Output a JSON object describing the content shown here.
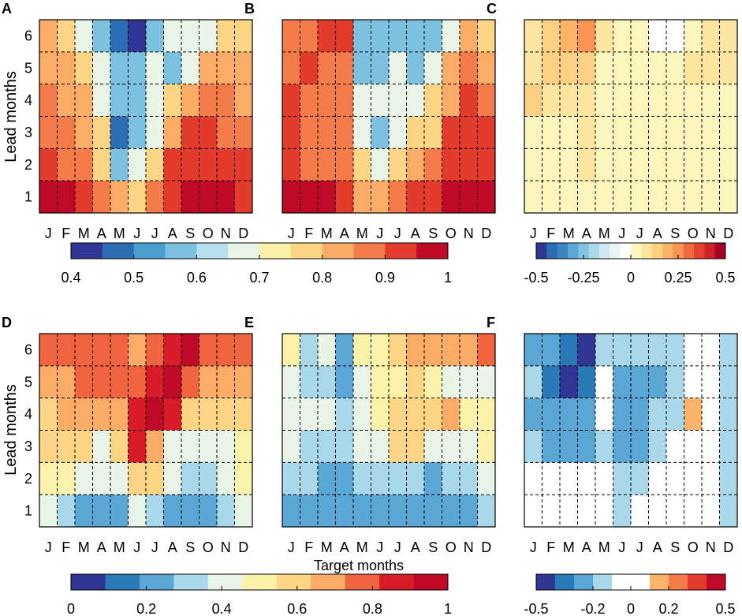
{
  "chart_data": {
    "type": "heatmap",
    "months": [
      "J",
      "F",
      "M",
      "A",
      "M",
      "J",
      "J",
      "A",
      "S",
      "O",
      "N",
      "D"
    ],
    "lead_months": [
      "1",
      "2",
      "3",
      "4",
      "5",
      "6"
    ],
    "ylabel": "Lead months",
    "xlabel": "Target months",
    "panels": [
      {
        "id": "A",
        "letter": "A",
        "row": 0,
        "col": 0,
        "scale": "top_abs",
        "values_lead6_to_1": [
          [
            0.8,
            0.75,
            0.7,
            0.6,
            0.5,
            0.45,
            0.6,
            0.65,
            0.65,
            0.7,
            0.75,
            0.75
          ],
          [
            0.8,
            0.8,
            0.75,
            0.7,
            0.55,
            0.55,
            0.7,
            0.6,
            0.7,
            0.8,
            0.8,
            0.8
          ],
          [
            0.85,
            0.8,
            0.8,
            0.7,
            0.6,
            0.6,
            0.7,
            0.75,
            0.8,
            0.85,
            0.85,
            0.8
          ],
          [
            0.85,
            0.85,
            0.8,
            0.75,
            0.5,
            0.6,
            0.7,
            0.8,
            0.9,
            0.9,
            0.85,
            0.85
          ],
          [
            0.9,
            0.85,
            0.85,
            0.75,
            0.6,
            0.7,
            0.75,
            0.9,
            0.9,
            0.9,
            0.9,
            0.9
          ],
          [
            0.95,
            0.95,
            0.9,
            0.85,
            0.8,
            0.75,
            0.85,
            0.9,
            0.95,
            0.95,
            0.95,
            0.9
          ]
        ]
      },
      {
        "id": "B",
        "letter": "B",
        "row": 0,
        "col": 1,
        "scale": "top_abs",
        "values_lead6_to_1": [
          [
            0.85,
            0.85,
            0.9,
            0.9,
            0.6,
            0.55,
            0.6,
            0.6,
            0.55,
            0.7,
            0.8,
            0.75
          ],
          [
            0.85,
            0.9,
            0.85,
            0.85,
            0.6,
            0.6,
            0.7,
            0.6,
            0.65,
            0.8,
            0.85,
            0.8
          ],
          [
            0.9,
            0.85,
            0.85,
            0.85,
            0.65,
            0.65,
            0.65,
            0.7,
            0.75,
            0.8,
            0.9,
            0.85
          ],
          [
            0.9,
            0.85,
            0.85,
            0.85,
            0.65,
            0.6,
            0.7,
            0.75,
            0.75,
            0.9,
            0.9,
            0.9
          ],
          [
            0.9,
            0.85,
            0.85,
            0.85,
            0.75,
            0.7,
            0.75,
            0.8,
            0.85,
            0.9,
            0.9,
            0.9
          ],
          [
            0.95,
            0.95,
            0.95,
            0.9,
            0.8,
            0.8,
            0.85,
            0.9,
            0.9,
            0.95,
            0.95,
            0.95
          ]
        ]
      },
      {
        "id": "C",
        "letter": "C",
        "row": 0,
        "col": 2,
        "scale": "top_diff",
        "values_lead6_to_1": [
          [
            0.1,
            0.15,
            0.2,
            0.25,
            0.1,
            0.05,
            0.0,
            -0.05,
            -0.05,
            0.05,
            0.1,
            0.1
          ],
          [
            0.1,
            0.15,
            0.15,
            0.15,
            0.0,
            0.05,
            0.05,
            0.0,
            0.05,
            0.1,
            0.1,
            0.1
          ],
          [
            0.15,
            0.1,
            0.1,
            0.1,
            0.05,
            0.05,
            0.05,
            0.05,
            0.0,
            0.0,
            0.05,
            0.05
          ],
          [
            0.05,
            0.05,
            0.05,
            0.1,
            0.05,
            0.05,
            0.05,
            0.05,
            0.0,
            0.05,
            0.05,
            0.05
          ],
          [
            0.05,
            0.05,
            0.05,
            0.1,
            0.05,
            0.05,
            0.05,
            0.05,
            0.0,
            0.0,
            0.05,
            0.05
          ],
          [
            0.05,
            0.05,
            0.05,
            0.05,
            0.0,
            0.05,
            0.05,
            0.0,
            0.0,
            0.0,
            0.05,
            0.05
          ]
        ]
      },
      {
        "id": "D",
        "letter": "D",
        "row": 1,
        "col": 0,
        "scale": "bottom_abs",
        "values_lead6_to_1": [
          [
            0.75,
            0.75,
            0.75,
            0.75,
            0.75,
            0.7,
            0.75,
            0.85,
            0.95,
            0.8,
            0.75,
            0.75
          ],
          [
            0.65,
            0.7,
            0.75,
            0.75,
            0.75,
            0.75,
            0.85,
            0.95,
            0.75,
            0.7,
            0.7,
            0.65
          ],
          [
            0.6,
            0.7,
            0.7,
            0.65,
            0.7,
            0.85,
            0.95,
            0.85,
            0.6,
            0.6,
            0.6,
            0.6
          ],
          [
            0.6,
            0.6,
            0.6,
            0.45,
            0.6,
            0.85,
            0.65,
            0.45,
            0.45,
            0.45,
            0.4,
            0.5
          ],
          [
            0.5,
            0.5,
            0.4,
            0.4,
            0.4,
            0.6,
            0.6,
            0.4,
            0.3,
            0.3,
            0.4,
            0.5
          ],
          [
            0.4,
            0.3,
            0.2,
            0.2,
            0.2,
            0.4,
            0.3,
            0.2,
            0.2,
            0.2,
            0.3,
            0.4
          ]
        ]
      },
      {
        "id": "E",
        "letter": "E",
        "row": 1,
        "col": 1,
        "scale": "bottom_abs",
        "values_lead6_to_1": [
          [
            0.5,
            0.35,
            0.4,
            0.25,
            0.5,
            0.5,
            0.6,
            0.65,
            0.7,
            0.65,
            0.7,
            0.75
          ],
          [
            0.45,
            0.35,
            0.35,
            0.25,
            0.45,
            0.5,
            0.5,
            0.6,
            0.5,
            0.4,
            0.4,
            0.4
          ],
          [
            0.4,
            0.4,
            0.4,
            0.3,
            0.4,
            0.5,
            0.6,
            0.6,
            0.55,
            0.65,
            0.5,
            0.5
          ],
          [
            0.4,
            0.35,
            0.35,
            0.3,
            0.4,
            0.4,
            0.55,
            0.55,
            0.4,
            0.4,
            0.4,
            0.5
          ],
          [
            0.3,
            0.3,
            0.25,
            0.25,
            0.3,
            0.3,
            0.3,
            0.3,
            0.25,
            0.3,
            0.3,
            0.4
          ],
          [
            0.25,
            0.25,
            0.2,
            0.2,
            0.2,
            0.25,
            0.25,
            0.2,
            0.25,
            0.25,
            0.25,
            0.3
          ]
        ]
      },
      {
        "id": "F",
        "letter": "F",
        "row": 1,
        "col": 2,
        "scale": "bottom_diff",
        "values_lead6_to_1": [
          [
            -0.25,
            -0.25,
            -0.35,
            -0.45,
            -0.2,
            -0.15,
            -0.2,
            -0.15,
            -0.15,
            -0.05,
            -0.05,
            -0.15
          ],
          [
            -0.15,
            -0.35,
            -0.45,
            -0.35,
            -0.1,
            -0.25,
            -0.3,
            -0.25,
            -0.2,
            -0.05,
            -0.05,
            -0.15
          ],
          [
            -0.25,
            -0.3,
            -0.3,
            -0.3,
            -0.05,
            -0.3,
            -0.3,
            -0.15,
            -0.15,
            0.15,
            -0.05,
            -0.15
          ],
          [
            -0.2,
            -0.25,
            -0.25,
            -0.25,
            -0.2,
            -0.3,
            -0.3,
            -0.15,
            -0.05,
            -0.05,
            -0.05,
            -0.15
          ],
          [
            -0.1,
            -0.1,
            -0.1,
            -0.1,
            -0.05,
            -0.2,
            -0.2,
            -0.05,
            -0.05,
            -0.05,
            -0.05,
            -0.15
          ],
          [
            -0.1,
            -0.05,
            -0.05,
            -0.05,
            -0.05,
            -0.15,
            -0.05,
            -0.05,
            -0.05,
            -0.05,
            -0.05,
            -0.15
          ]
        ]
      }
    ],
    "colorbars": {
      "top_abs": {
        "min": 0.4,
        "max": 1.0,
        "colors": [
          "#313695",
          "#2b6eb3",
          "#4c9ecf",
          "#7dc1e0",
          "#b7e0ef",
          "#e9f5e6",
          "#fbf3a9",
          "#fdd685",
          "#fbad67",
          "#f47c4b",
          "#e33b2c",
          "#be0a26"
        ],
        "tick_values": [
          0.4,
          0.5,
          0.6,
          0.7,
          0.8,
          0.9,
          1.0
        ],
        "tick_labels": [
          "0.4",
          "0.5",
          "0.6",
          "0.7",
          "0.8",
          "0.9",
          "1"
        ]
      },
      "top_diff": {
        "min": -0.5,
        "max": 0.5,
        "colors": [
          "#313695",
          "#2b6eb3",
          "#3c86c1",
          "#5aa6d4",
          "#82c3e0",
          "#a9d8ea",
          "#cde9f2",
          "#eaf5f2",
          "#ffffff",
          "#fdf6bd",
          "#fde7a0",
          "#fdd183",
          "#fbb468",
          "#f89452",
          "#ef6c3f",
          "#e2422f",
          "#cc2228",
          "#a50026"
        ],
        "tick_values": [
          -0.5,
          -0.25,
          0,
          0.25,
          0.5
        ],
        "tick_labels": [
          "-0.5",
          "-0.25",
          "0",
          "0.25",
          "0.5"
        ]
      },
      "bottom_abs": {
        "min": 0,
        "max": 1.0,
        "colors": [
          "#313695",
          "#2b7ab8",
          "#5aa6d4",
          "#a9d8ea",
          "#e9f5e6",
          "#fbf3a9",
          "#fdd685",
          "#fbad67",
          "#f06440",
          "#d81c2a",
          "#be0a26"
        ],
        "tick_values": [
          0,
          0.2,
          0.4,
          0.6,
          0.8,
          1.0
        ],
        "tick_labels": [
          "0",
          "0.2",
          "0.4",
          "0.6",
          "0.8",
          "1"
        ]
      },
      "bottom_diff": {
        "min": -0.5,
        "max": 0.5,
        "colors": [
          "#313695",
          "#2b7ab8",
          "#5aa6d4",
          "#a9d8ea",
          "#ffffff",
          "#ffffff",
          "#fbb468",
          "#f47c4b",
          "#e33b2c",
          "#be0a26"
        ],
        "tick_values": [
          -0.5,
          -0.2,
          0,
          0.2,
          0.5
        ],
        "tick_labels": [
          "-0.5",
          "-0.2",
          "0",
          "0.2",
          "0.5"
        ]
      }
    }
  }
}
